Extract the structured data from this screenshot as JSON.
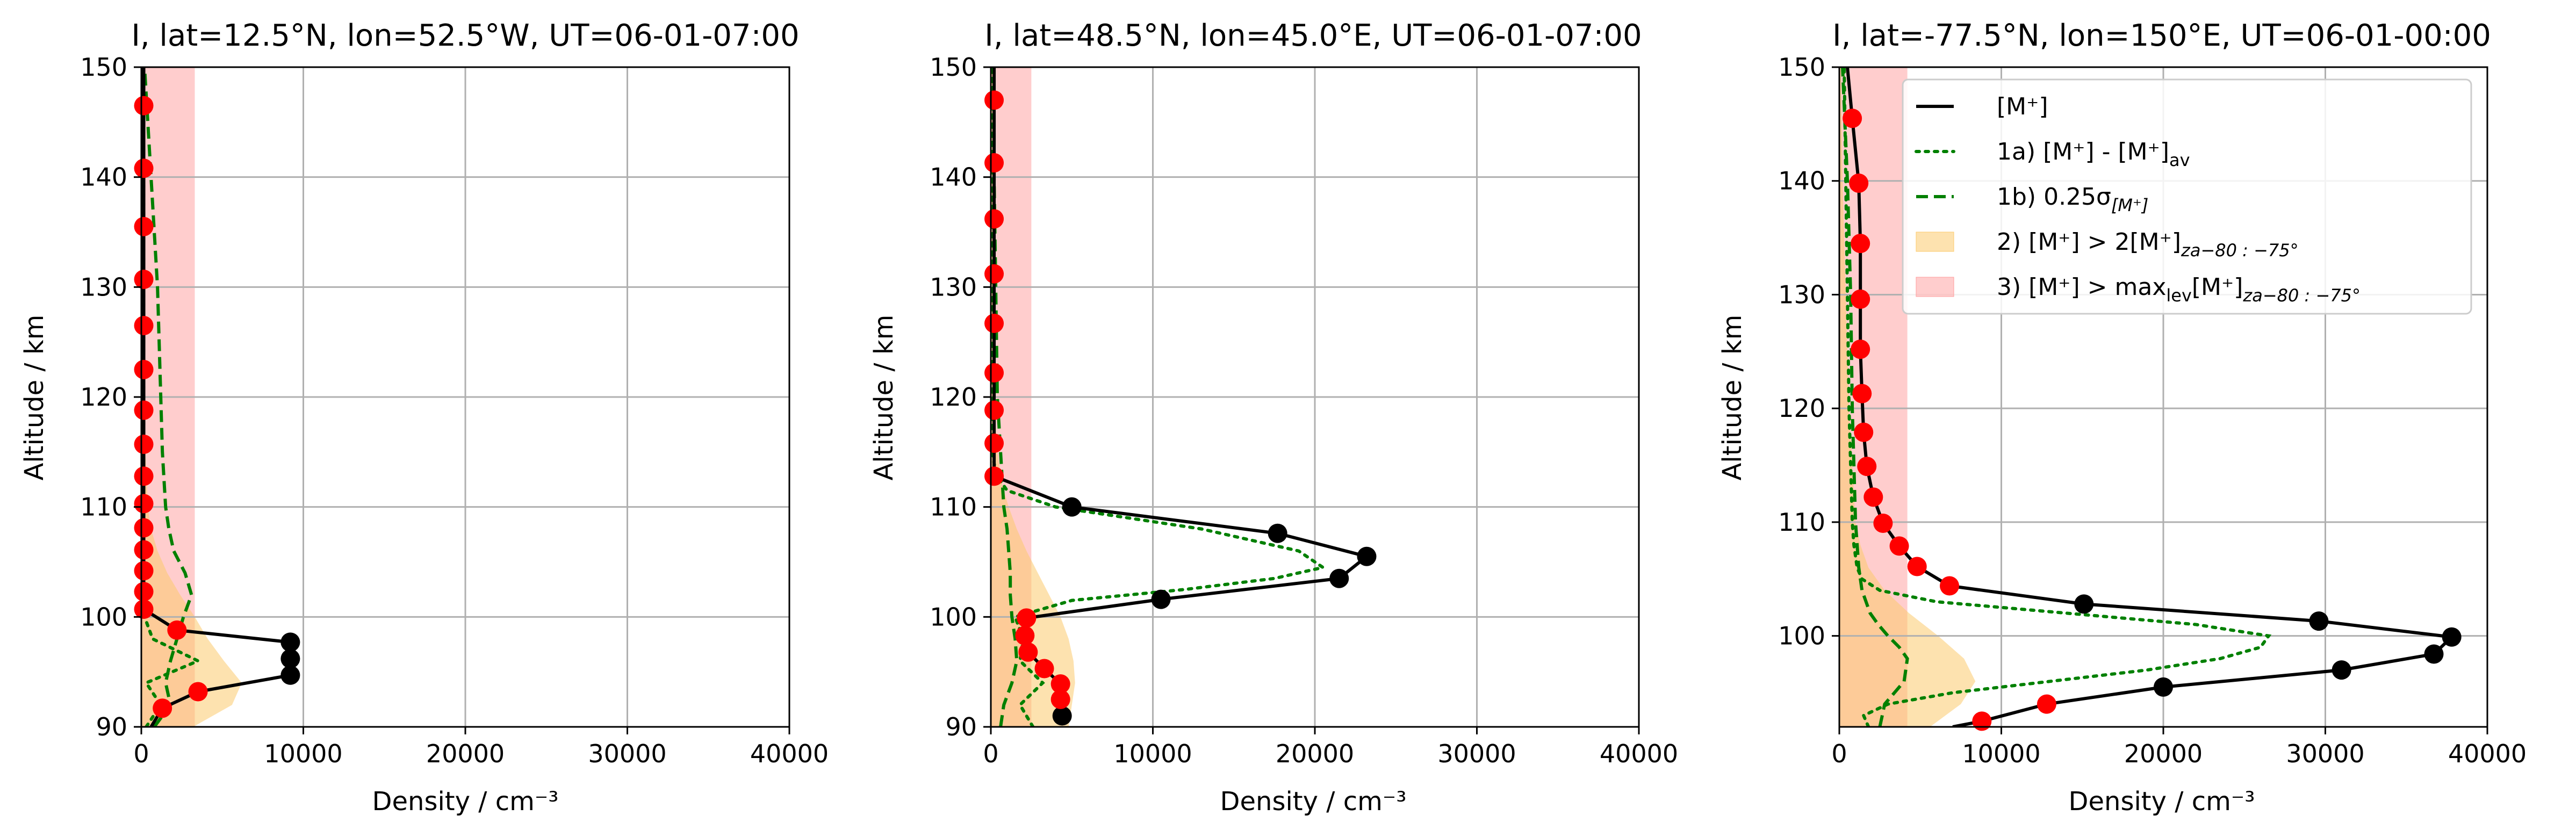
{
  "figure": {
    "background": "#ffffff"
  },
  "colors": {
    "observed": "#000000",
    "observed_marker": "#000000",
    "flagged_marker": "#ff0000",
    "anomaly": "#008000",
    "sigma": "#008000",
    "criterion2_fill": "#fccb6e",
    "criterion3_fill": "#ff9c9c",
    "grid": "#b0b0b0"
  },
  "legend": {
    "location": "upper right of third panel",
    "items": [
      {
        "key": "observed",
        "text": "[M⁺]",
        "sub": ""
      },
      {
        "key": "anomaly",
        "text": "1a) [M⁺] - [M⁺]",
        "sub": "av"
      },
      {
        "key": "sigma",
        "text": "1b) 0.25σ",
        "sub": "[M⁺]"
      },
      {
        "key": "criterion2",
        "text": "2) [M⁺] > 2[M⁺]",
        "sub": "za−80 : −75°"
      },
      {
        "key": "criterion3",
        "text": "3) [M⁺] > max",
        "sub": "lev",
        "text2": "[M⁺]",
        "sub2": "za−80 : −75°"
      }
    ]
  },
  "chart_data": [
    {
      "type": "line",
      "title": "I, lat=12.5°N, lon=52.5°W, UT=06-01-07:00",
      "xlabel": "Density / cm⁻³",
      "ylabel": "Altitude / km",
      "xlim": [
        0,
        40000
      ],
      "ylim": [
        90,
        150
      ],
      "xticks": [
        0,
        10000,
        20000,
        30000,
        40000
      ],
      "yticks": [
        90,
        100,
        110,
        120,
        130,
        140,
        150
      ],
      "grid": true,
      "observed": {
        "y": [
          90,
          91.7,
          93.2,
          94.7,
          96.2,
          97.7,
          98.8,
          100.7,
          102.3,
          104.2,
          106.1,
          108.1,
          110.3,
          112.8,
          115.7,
          118.8,
          122.5,
          126.5,
          130.7,
          135.5,
          140.8,
          146.5,
          150
        ],
        "x": [
          600,
          1300,
          3500,
          9200,
          9200,
          9200,
          2200,
          150,
          150,
          150,
          150,
          150,
          150,
          150,
          150,
          150,
          150,
          150,
          150,
          150,
          150,
          150,
          150
        ],
        "black_markers": [
          3,
          4,
          5
        ],
        "red_markers": [
          1,
          2,
          6,
          7,
          8,
          9,
          10,
          11,
          12,
          13,
          14,
          15,
          16,
          17,
          18,
          19,
          20,
          21
        ]
      },
      "anomaly": {
        "y": [
          90,
          92,
          94,
          96,
          98,
          100,
          102,
          106,
          110,
          120,
          130,
          140,
          150
        ],
        "x": [
          300,
          1200,
          300,
          3500,
          700,
          200,
          150,
          150,
          150,
          150,
          150,
          150,
          150
        ]
      },
      "sigma": {
        "y": [
          90,
          92,
          94,
          96,
          98,
          100,
          102,
          104,
          106,
          108,
          110,
          115,
          120,
          125,
          130,
          135,
          140,
          145,
          150
        ],
        "x": [
          800,
          1800,
          1500,
          1800,
          2200,
          2600,
          3100,
          2700,
          2000,
          1700,
          1500,
          1300,
          1200,
          1100,
          1000,
          800,
          600,
          400,
          200
        ]
      },
      "criterion2": {
        "y": [
          90,
          92,
          94,
          96,
          98,
          100,
          102,
          104,
          106,
          108,
          110,
          115,
          120,
          130,
          150
        ],
        "x": [
          3200,
          5600,
          6200,
          5100,
          4100,
          3300,
          2400,
          1600,
          1000,
          600,
          400,
          250,
          150,
          100,
          100
        ]
      },
      "criterion3": {
        "y": [
          90,
          150
        ],
        "x": [
          3300,
          3300
        ]
      }
    },
    {
      "type": "line",
      "title": "I, lat=48.5°N, lon=45.0°E, UT=06-01-07:00",
      "xlabel": "Density / cm⁻³",
      "ylabel": "Altitude / km",
      "xlim": [
        0,
        40000
      ],
      "ylim": [
        90,
        150
      ],
      "xticks": [
        0,
        10000,
        20000,
        30000,
        40000
      ],
      "yticks": [
        90,
        100,
        110,
        120,
        130,
        140,
        150
      ],
      "grid": true,
      "observed": {
        "y": [
          91,
          92.5,
          93.9,
          95.3,
          96.8,
          98.3,
          99.9,
          101.6,
          103.5,
          105.5,
          107.6,
          110,
          112.8,
          115.8,
          118.8,
          122.2,
          126.7,
          131.2,
          136.2,
          141.3,
          147,
          150
        ],
        "x": [
          4400,
          4300,
          4300,
          3300,
          2300,
          2100,
          2200,
          10500,
          21500,
          23200,
          17700,
          5000,
          200,
          200,
          200,
          200,
          200,
          200,
          200,
          200,
          200,
          200
        ],
        "black_markers": [
          0,
          7,
          8,
          9,
          10,
          11
        ],
        "red_markers": [
          1,
          2,
          3,
          4,
          5,
          6,
          12,
          13,
          14,
          15,
          16,
          17,
          18,
          19,
          20
        ]
      },
      "anomaly": {
        "y": [
          90,
          92,
          94,
          96,
          98,
          100,
          101.5,
          102.5,
          103.5,
          104.5,
          106,
          108,
          110,
          111.5,
          113,
          115,
          120,
          130,
          150
        ],
        "x": [
          2600,
          1800,
          3200,
          1800,
          2000,
          1500,
          5000,
          12000,
          17500,
          20500,
          19000,
          13000,
          4000,
          1000,
          300,
          100,
          100,
          100,
          100
        ]
      },
      "sigma": {
        "y": [
          90,
          92,
          94,
          96,
          98,
          100,
          102,
          104,
          106,
          108,
          110,
          115,
          120,
          130,
          140,
          150
        ],
        "x": [
          600,
          800,
          1300,
          1600,
          1500,
          1300,
          1200,
          1200,
          1100,
          1000,
          800,
          600,
          400,
          300,
          200,
          200
        ]
      },
      "criterion2": {
        "y": [
          90,
          92,
          94,
          96,
          98,
          100,
          102,
          104,
          106,
          108,
          110,
          112,
          115,
          120,
          130,
          150
        ],
        "x": [
          4800,
          5000,
          5200,
          5100,
          4800,
          4300,
          3600,
          2900,
          2200,
          1600,
          1100,
          700,
          400,
          200,
          100,
          100
        ]
      },
      "criterion3": {
        "y": [
          90,
          150
        ],
        "x": [
          2500,
          2500
        ]
      }
    },
    {
      "type": "line",
      "title": "I, lat=-77.5°N, lon=150°E, UT=06-01-00:00",
      "xlabel": "Density / cm⁻³",
      "ylabel": "Altitude / km",
      "xlim": [
        0,
        40000
      ],
      "ylim": [
        92,
        150
      ],
      "xticks": [
        0,
        10000,
        20000,
        30000,
        40000
      ],
      "yticks": [
        100,
        110,
        120,
        130,
        140,
        150
      ],
      "grid": true,
      "observed": {
        "y": [
          92,
          92.5,
          94,
          95.5,
          97,
          98.4,
          99.9,
          101.3,
          102.8,
          104.4,
          106.1,
          107.9,
          109.9,
          112.2,
          114.9,
          117.9,
          121.3,
          125.2,
          129.6,
          134.5,
          139.8,
          145.5,
          150
        ],
        "x": [
          7000,
          8800,
          12800,
          20000,
          31000,
          36700,
          37800,
          29600,
          15100,
          6800,
          4800,
          3700,
          2700,
          2100,
          1700,
          1500,
          1400,
          1300,
          1300,
          1300,
          1200,
          800,
          500
        ],
        "black_markers": [
          3,
          4,
          5,
          6,
          7,
          8
        ],
        "red_markers": [
          1,
          2,
          9,
          10,
          11,
          12,
          13,
          14,
          15,
          16,
          17,
          18,
          19,
          20,
          21
        ]
      },
      "anomaly": {
        "y": [
          92,
          93,
          94,
          95,
          96,
          97,
          98,
          99,
          100,
          101,
          102,
          103,
          104,
          105,
          106,
          108,
          110,
          115,
          120,
          130,
          140,
          150
        ],
        "x": [
          1800,
          1500,
          3000,
          7000,
          13000,
          19000,
          23500,
          26000,
          26500,
          22000,
          14000,
          6000,
          2500,
          1400,
          1100,
          900,
          800,
          700,
          600,
          500,
          400,
          300
        ]
      },
      "sigma": {
        "y": [
          92,
          94,
          96,
          98,
          99,
          100,
          101,
          102,
          104,
          106,
          108,
          110,
          115,
          120,
          130,
          140,
          150
        ],
        "x": [
          2500,
          2800,
          4000,
          4200,
          3700,
          3000,
          2400,
          1900,
          1400,
          1200,
          1100,
          1000,
          900,
          800,
          700,
          500,
          200
        ]
      },
      "criterion2": {
        "y": [
          92,
          94,
          96,
          98,
          100,
          102,
          104,
          106,
          108,
          110,
          115,
          120,
          130,
          140,
          150
        ],
        "x": [
          5600,
          7500,
          8400,
          7700,
          6100,
          4300,
          2800,
          1800,
          1300,
          1000,
          800,
          600,
          400,
          200,
          100
        ]
      },
      "criterion3": {
        "y": [
          92,
          150
        ],
        "x": [
          4200,
          4200
        ]
      }
    }
  ]
}
